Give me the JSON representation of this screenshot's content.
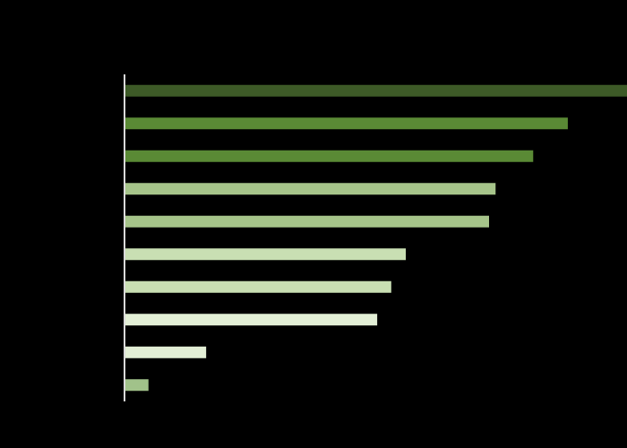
{
  "chart_data": {
    "type": "hbar",
    "categories": [
      null,
      null,
      null,
      null,
      null,
      null,
      null,
      null,
      null,
      null
    ],
    "values": [
      100,
      88.2,
      81.3,
      73.8,
      72.5,
      55.9,
      53,
      50.2,
      16.1,
      4.6
    ],
    "colors": [
      "#3d5a27",
      "#5a8a35",
      "#5a8a35",
      "#a6c48a",
      "#a6c48a",
      "#c9dfb3",
      "#c9dfb3",
      "#e3efd6",
      "#e3efd6",
      "#a1c28a"
    ],
    "xlim": [
      0,
      100
    ],
    "axis_color": "#d9d9d9",
    "background": "#000000"
  }
}
